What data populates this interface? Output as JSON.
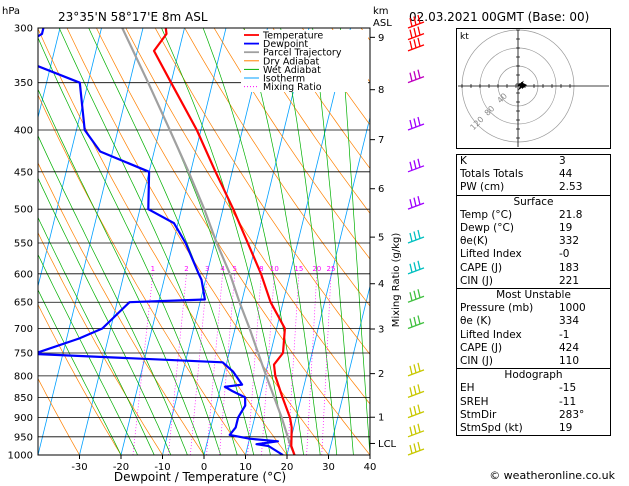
{
  "station_title": "23°35'N  58°17'E  8m  ASL",
  "datetime": "02.03.2021  00GMT  (Base: 00)",
  "copyright": "© weatheronline.co.uk",
  "chart_data": {
    "type": "line",
    "x_unit_label": "hPa",
    "km_label": "km\nASL",
    "xlabel": "Dewpoint / Temperature (°C)",
    "mixing_label": "Mixing Ratio (g/kg)",
    "pressure_ticks": [
      300,
      350,
      400,
      450,
      500,
      550,
      600,
      650,
      700,
      750,
      800,
      850,
      900,
      950,
      1000
    ],
    "temp_ticks": [
      -30,
      -20,
      -10,
      0,
      10,
      20,
      30,
      40
    ],
    "xlim": [
      -40,
      40
    ],
    "km_ticks": [
      {
        "km": "9",
        "p": 308
      },
      {
        "km": "8",
        "p": 357
      },
      {
        "km": "7",
        "p": 411
      },
      {
        "km": "6",
        "p": 472
      },
      {
        "km": "5",
        "p": 541
      },
      {
        "km": "4",
        "p": 617
      },
      {
        "km": "3",
        "p": 701
      },
      {
        "km": "2",
        "p": 795
      },
      {
        "km": "1",
        "p": 899
      },
      {
        "km": "LCL",
        "p": 968
      }
    ],
    "mixing_ratio_values": [
      "1",
      "2",
      "3",
      "4",
      "5",
      "8",
      "10",
      "15",
      "20",
      "25"
    ],
    "legend": [
      "Temperature",
      "Dewpoint",
      "Parcel Trajectory",
      "Dry Adiabat",
      "Wet Adiabat",
      "Isotherm",
      "Mixing Ratio"
    ],
    "series": [
      {
        "name": "Temperature",
        "points": [
          [
            1000,
            21.8
          ],
          [
            975,
            20.5
          ],
          [
            950,
            20.0
          ],
          [
            925,
            19.5
          ],
          [
            900,
            18.5
          ],
          [
            850,
            15.5
          ],
          [
            800,
            12.5
          ],
          [
            775,
            11.5
          ],
          [
            750,
            13.0
          ],
          [
            700,
            12.0
          ],
          [
            650,
            7.0
          ],
          [
            600,
            3.0
          ],
          [
            550,
            -2.0
          ],
          [
            500,
            -7.5
          ],
          [
            450,
            -14.0
          ],
          [
            400,
            -21.0
          ],
          [
            350,
            -30.0
          ],
          [
            320,
            -36.0
          ],
          [
            305,
            -34.0
          ],
          [
            300,
            -34.5
          ]
        ]
      },
      {
        "name": "Dewpoint",
        "points": [
          [
            1000,
            19.0
          ],
          [
            975,
            15.0
          ],
          [
            970,
            12.0
          ],
          [
            962,
            17.0
          ],
          [
            955,
            10.0
          ],
          [
            945,
            5.0
          ],
          [
            925,
            6.0
          ],
          [
            900,
            6.0
          ],
          [
            870,
            7.0
          ],
          [
            850,
            6.5
          ],
          [
            835,
            3.0
          ],
          [
            825,
            1.0
          ],
          [
            820,
            5.0
          ],
          [
            790,
            2.0
          ],
          [
            770,
            -1.0
          ],
          [
            752,
            -47.0
          ],
          [
            720,
            -37.0
          ],
          [
            700,
            -32.0
          ],
          [
            650,
            -27.0
          ],
          [
            645,
            -9.0
          ],
          [
            610,
            -11.0
          ],
          [
            600,
            -12.0
          ],
          [
            550,
            -17.0
          ],
          [
            520,
            -21.0
          ],
          [
            500,
            -28.0
          ],
          [
            450,
            -30.0
          ],
          [
            425,
            -43.0
          ],
          [
            400,
            -48.0
          ],
          [
            350,
            -52.0
          ],
          [
            330,
            -66.0
          ],
          [
            315,
            -68.0
          ],
          [
            305,
            -64.0
          ],
          [
            300,
            -64.0
          ]
        ]
      },
      {
        "name": "Parcel Trajectory",
        "points": [
          [
            1000,
            21.8
          ],
          [
            968,
            20.0
          ],
          [
            900,
            16.5
          ],
          [
            850,
            13.5
          ],
          [
            800,
            10.3
          ],
          [
            750,
            7.0
          ],
          [
            700,
            3.5
          ],
          [
            650,
            -0.5
          ],
          [
            600,
            -4.5
          ],
          [
            550,
            -9.5
          ],
          [
            500,
            -14.5
          ],
          [
            450,
            -20.5
          ],
          [
            400,
            -27.5
          ],
          [
            350,
            -35.5
          ],
          [
            300,
            -45.0
          ]
        ]
      }
    ],
    "colors": {
      "temperature": "#ff0000",
      "dewpoint": "#0000ff",
      "parcel": "#a0a0a0",
      "dry_adiabat": "#ff8000",
      "wet_adiabat": "#00b000",
      "isotherm": "#00a0ff",
      "mixing": "#ff00ff",
      "winds": "#c8c800"
    },
    "winds": [
      {
        "p": 300,
        "color": "#ff0000"
      },
      {
        "p": 310,
        "color": "#ff0000"
      },
      {
        "p": 320,
        "color": "#ff0000"
      },
      {
        "p": 350,
        "color": "#c000c0"
      },
      {
        "p": 400,
        "color": "#a000ff"
      },
      {
        "p": 450,
        "color": "#a000ff"
      },
      {
        "p": 500,
        "color": "#a000ff"
      },
      {
        "p": 550,
        "color": "#00c0c0"
      },
      {
        "p": 600,
        "color": "#00c0c0"
      },
      {
        "p": 650,
        "color": "#40c040"
      },
      {
        "p": 700,
        "color": "#40c040"
      },
      {
        "p": 800,
        "color": "#c8c800"
      },
      {
        "p": 850,
        "color": "#c8c800"
      },
      {
        "p": 900,
        "color": "#c8c800"
      },
      {
        "p": 950,
        "color": "#c8c800"
      },
      {
        "p": 1000,
        "color": "#c8c800"
      }
    ],
    "hodograph": {
      "unit": "kt",
      "ring_labels": [
        "40",
        "80",
        "120"
      ]
    }
  },
  "indices": [
    {
      "label": "K",
      "value": "3"
    },
    {
      "label": "Totals Totals",
      "value": "44"
    },
    {
      "label": "PW (cm)",
      "value": "2.53"
    }
  ],
  "surface": {
    "title": "Surface",
    "rows": [
      {
        "label": "Temp (°C)",
        "value": "21.8"
      },
      {
        "label": "Dewp (°C)",
        "value": "19"
      },
      {
        "label": "θe(K)",
        "value": "332"
      },
      {
        "label": "Lifted Index",
        "value": "-0"
      },
      {
        "label": "CAPE (J)",
        "value": "183"
      },
      {
        "label": "CIN (J)",
        "value": "221"
      }
    ]
  },
  "most_unstable": {
    "title": "Most Unstable",
    "rows": [
      {
        "label": "Pressure (mb)",
        "value": "1000"
      },
      {
        "label": "θe (K)",
        "value": "334"
      },
      {
        "label": "Lifted Index",
        "value": "-1"
      },
      {
        "label": "CAPE (J)",
        "value": "424"
      },
      {
        "label": "CIN (J)",
        "value": "110"
      }
    ]
  },
  "hodograph_table": {
    "title": "Hodograph",
    "rows": [
      {
        "label": "EH",
        "value": "-15"
      },
      {
        "label": "SREH",
        "value": "-11"
      },
      {
        "label": "StmDir",
        "value": "283°"
      },
      {
        "label": "StmSpd (kt)",
        "value": "19"
      }
    ]
  }
}
